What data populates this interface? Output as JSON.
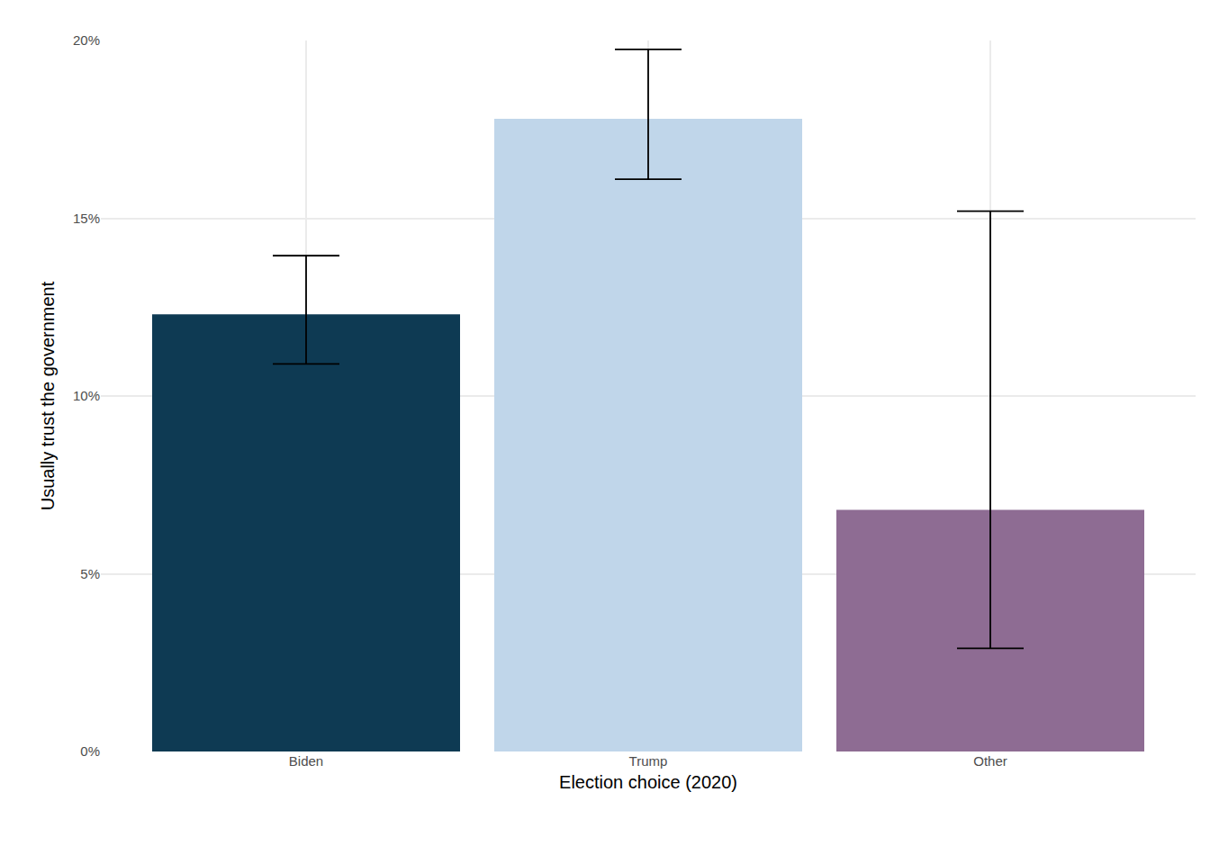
{
  "chart_data": {
    "type": "bar",
    "x_label": "Election choice (2020)",
    "y_label": "Usually trust the government",
    "categories": [
      "Biden",
      "Trump",
      "Other"
    ],
    "values": [
      12.3,
      17.8,
      6.8
    ],
    "error_lower": [
      10.9,
      16.1,
      2.9
    ],
    "error_upper": [
      13.95,
      19.75,
      15.2
    ],
    "colors": [
      "#0e3a53",
      "#c0d6ea",
      "#8e6c93"
    ],
    "ylim": [
      0,
      20
    ],
    "yticks": [
      {
        "value": 0,
        "label": "0%"
      },
      {
        "value": 5,
        "label": "5%"
      },
      {
        "value": 10,
        "label": "10%"
      },
      {
        "value": 15,
        "label": "15%"
      },
      {
        "value": 20,
        "label": "20%"
      }
    ],
    "grid": true
  }
}
